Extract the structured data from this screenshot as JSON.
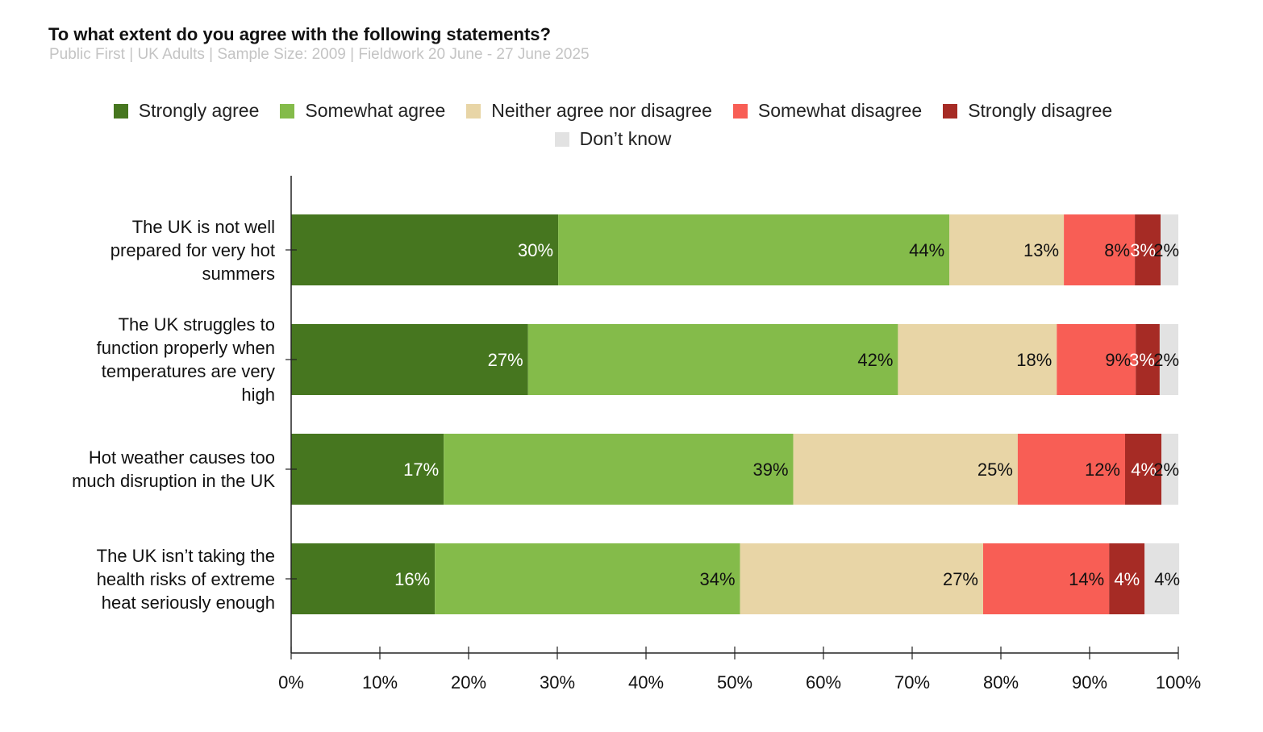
{
  "chart_data": {
    "type": "bar",
    "orientation": "horizontal",
    "stacked": true,
    "title": "To what extent do you agree with the following statements?",
    "subtitle": "Public First | UK Adults | Sample Size: 2009 | Fieldwork 20 June - 27 June 2025",
    "categories": [
      "The UK is not well prepared for very hot summers",
      "The UK struggles to function properly when temperatures are very high",
      "Hot weather causes too much disruption in the UK",
      "The UK isn’t taking the health risks of extreme heat seriously enough"
    ],
    "category_lines": [
      [
        "The UK is not well",
        "prepared for very hot",
        "summers"
      ],
      [
        "The UK struggles to",
        "function properly when",
        "temperatures are very",
        "high"
      ],
      [
        "Hot weather causes too",
        "much disruption in the UK"
      ],
      [
        "The UK isn’t taking the",
        "health risks of extreme",
        "heat seriously enough"
      ]
    ],
    "series": [
      {
        "name": "Strongly agree",
        "color": "#46761f",
        "label_color": "#ffffff",
        "values": [
          30.1,
          26.7,
          17.2,
          16.2
        ]
      },
      {
        "name": "Somewhat agree",
        "color": "#84bb4a",
        "label_color": "#111111",
        "values": [
          44.1,
          41.7,
          39.4,
          34.4
        ]
      },
      {
        "name": "Neither agree nor disagree",
        "color": "#e8d5a6",
        "label_color": "#111111",
        "values": [
          12.9,
          17.9,
          25.3,
          27.4
        ]
      },
      {
        "name": "Somewhat disagree",
        "color": "#f85e55",
        "label_color": "#111111",
        "values": [
          8.0,
          8.9,
          12.1,
          14.2
        ]
      },
      {
        "name": "Strongly disagree",
        "color": "#a62b25",
        "label_color": "#ffffff",
        "values": [
          2.9,
          2.7,
          4.1,
          4.0
        ]
      },
      {
        "name": "Don’t know",
        "color": "#e2e2e2",
        "label_color": "#111111",
        "values": [
          2.0,
          2.1,
          1.9,
          3.9
        ]
      }
    ],
    "data_labels": [
      [
        "30%",
        "44%",
        "13%",
        "8%",
        "3%",
        "2%"
      ],
      [
        "27%",
        "42%",
        "18%",
        "9%",
        "3%",
        "2%"
      ],
      [
        "17%",
        "39%",
        "25%",
        "12%",
        "4%",
        "2%"
      ],
      [
        "16%",
        "34%",
        "27%",
        "14%",
        "4%",
        "4%"
      ]
    ],
    "x_ticks": [
      "0%",
      "10%",
      "20%",
      "30%",
      "40%",
      "50%",
      "60%",
      "70%",
      "80%",
      "90%",
      "100%"
    ],
    "xlim": [
      0,
      100
    ],
    "grid": false,
    "legend_position": "top"
  }
}
